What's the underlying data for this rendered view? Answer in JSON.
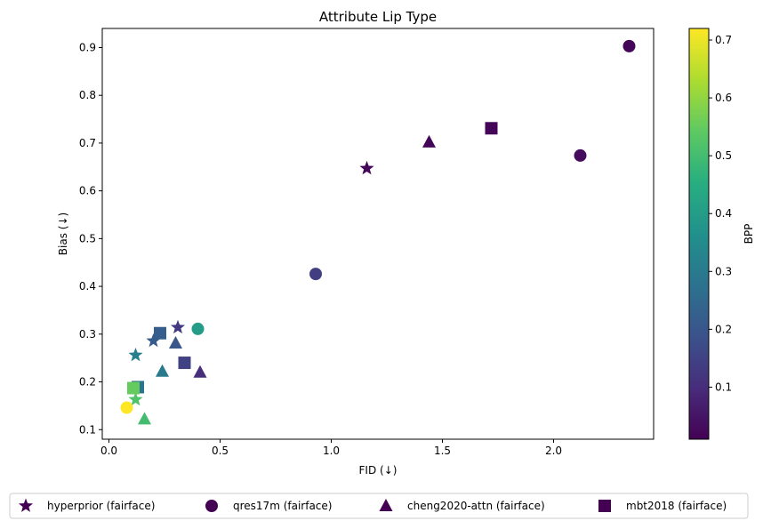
{
  "chart_data": {
    "type": "scatter",
    "title": "Attribute Lip Type",
    "xlabel": "FID (↓)",
    "ylabel": "Bias (↓)",
    "xlim": [
      -0.03,
      2.45
    ],
    "ylim": [
      0.08,
      0.94
    ],
    "xticks": [
      "0.0",
      "0.5",
      "1.0",
      "1.5",
      "2.0"
    ],
    "yticks": [
      "0.1",
      "0.2",
      "0.3",
      "0.4",
      "0.5",
      "0.6",
      "0.7",
      "0.8",
      "0.9"
    ],
    "grid": false,
    "colorbar": {
      "label": "BPP",
      "colormap": "viridis",
      "range": [
        0.01,
        0.72
      ],
      "ticks": [
        "0.1",
        "0.2",
        "0.3",
        "0.4",
        "0.5",
        "0.6",
        "0.7"
      ]
    },
    "legend": {
      "placement": "bottom",
      "marker_color": "#440154"
    },
    "series": [
      {
        "name": "hyperprior (fairface)",
        "marker": "star",
        "points": [
          {
            "x": 1.16,
            "y": 0.647,
            "bpp": 0.02
          },
          {
            "x": 0.31,
            "y": 0.314,
            "bpp": 0.13
          },
          {
            "x": 0.2,
            "y": 0.286,
            "bpp": 0.21
          },
          {
            "x": 0.12,
            "y": 0.256,
            "bpp": 0.32
          },
          {
            "x": 0.12,
            "y": 0.163,
            "bpp": 0.52
          }
        ]
      },
      {
        "name": "qres17m (fairface)",
        "marker": "circle",
        "points": [
          {
            "x": 2.34,
            "y": 0.903,
            "bpp": 0.02
          },
          {
            "x": 2.12,
            "y": 0.674,
            "bpp": 0.03
          },
          {
            "x": 0.93,
            "y": 0.426,
            "bpp": 0.14
          },
          {
            "x": 0.4,
            "y": 0.311,
            "bpp": 0.4
          },
          {
            "x": 0.08,
            "y": 0.146,
            "bpp": 0.72
          }
        ]
      },
      {
        "name": "cheng2020-attn (fairface)",
        "marker": "triangle",
        "points": [
          {
            "x": 1.44,
            "y": 0.702,
            "bpp": 0.02
          },
          {
            "x": 0.41,
            "y": 0.22,
            "bpp": 0.1
          },
          {
            "x": 0.3,
            "y": 0.281,
            "bpp": 0.2
          },
          {
            "x": 0.24,
            "y": 0.222,
            "bpp": 0.3
          },
          {
            "x": 0.16,
            "y": 0.122,
            "bpp": 0.5
          }
        ]
      },
      {
        "name": "mbt2018 (fairface)",
        "marker": "square",
        "points": [
          {
            "x": 1.72,
            "y": 0.731,
            "bpp": 0.02
          },
          {
            "x": 0.34,
            "y": 0.24,
            "bpp": 0.15
          },
          {
            "x": 0.23,
            "y": 0.302,
            "bpp": 0.22
          },
          {
            "x": 0.13,
            "y": 0.189,
            "bpp": 0.28
          },
          {
            "x": 0.11,
            "y": 0.187,
            "bpp": 0.55
          }
        ]
      }
    ]
  }
}
